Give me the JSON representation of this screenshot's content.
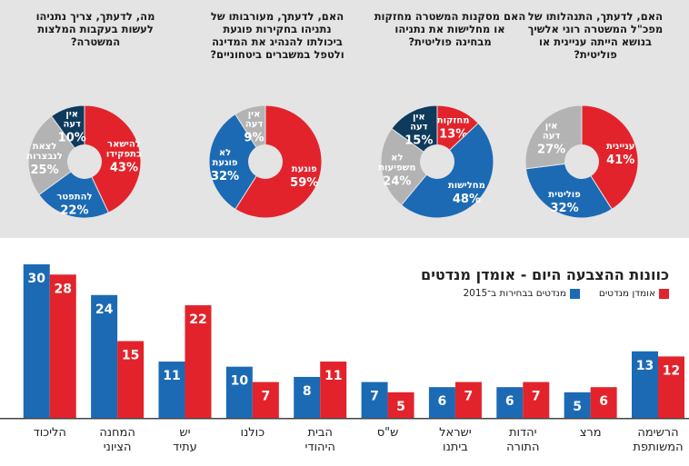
{
  "colors": {
    "red": "#e3232b",
    "blue": "#1c6ab4",
    "gray": "#b3b3b3",
    "navy": "#0e3a5c",
    "bar_bg": "#e6e6e6"
  },
  "pies": [
    {
      "question": "האם, לדעתך, התנהלותו של מפכ\"ל המשטרה רוני אלשיך בנושא הייתה עניינית או פוליטית?",
      "slices": [
        {
          "label": "עניינית",
          "value": 41,
          "color": "red"
        },
        {
          "label": "פוליטית",
          "value": 32,
          "color": "blue"
        },
        {
          "label": "אין דעה",
          "value": 27,
          "color": "gray"
        }
      ]
    },
    {
      "question": "האם מסקנות המשטרה מחזקות או מחלישות את נתניהו מבחינה פוליטית?",
      "slices": [
        {
          "label": "מחזקות",
          "value": 13,
          "color": "red"
        },
        {
          "label": "מחלישות",
          "value": 48,
          "color": "blue"
        },
        {
          "label": "לא משפיעות",
          "value": 24,
          "color": "gray"
        },
        {
          "label": "אין דעה",
          "value": 15,
          "color": "navy"
        }
      ]
    },
    {
      "question": "האם, לדעתך, מעורבותו של נתניהו בחקירות פוגעת ביכולתו להנהיג את המדינה ולטפל במשברים ביטחוניים?",
      "slices": [
        {
          "label": "פוגעת",
          "value": 59,
          "color": "red"
        },
        {
          "label": "לא פוגעת",
          "value": 32,
          "color": "blue"
        },
        {
          "label": "אין דעה",
          "value": 9,
          "color": "gray"
        }
      ]
    },
    {
      "question": "מה, לדעתך, צריך נתניהו לעשות בעקבות המלצות המשטרה?",
      "slices": [
        {
          "label": "להישאר בתפקידו",
          "value": 43,
          "color": "red"
        },
        {
          "label": "להתפטר",
          "value": 22,
          "color": "blue"
        },
        {
          "label": "לצאת לנבצרות",
          "value": 25,
          "color": "gray"
        },
        {
          "label": "אין דעה",
          "value": 10,
          "color": "navy"
        }
      ]
    }
  ],
  "chart_data": {
    "type": "bar",
    "title": "כוונות ההצבעה היום - אומדן מנדטים",
    "legend": [
      {
        "name": "אומדן מנדטים",
        "color": "red"
      },
      {
        "name": "מנדטים בבחירות ב־2015",
        "color": "blue"
      }
    ],
    "categories": [
      "הרשימה המשותפת",
      "מרצ",
      "יהדות התורה",
      "ישראל ביתנו",
      "ש\"ס",
      "הבית היהודי",
      "כולנו",
      "יש עתיד",
      "המחנה הציוני",
      "הליכוד"
    ],
    "series": [
      {
        "name": "מנדטים בבחירות ב־2015",
        "color": "blue",
        "values": [
          13,
          5,
          6,
          6,
          7,
          8,
          10,
          11,
          24,
          30
        ]
      },
      {
        "name": "אומדן מנדטים",
        "color": "red",
        "values": [
          12,
          6,
          7,
          7,
          5,
          11,
          7,
          22,
          15,
          28
        ]
      }
    ],
    "ylim": [
      0,
      30
    ]
  }
}
